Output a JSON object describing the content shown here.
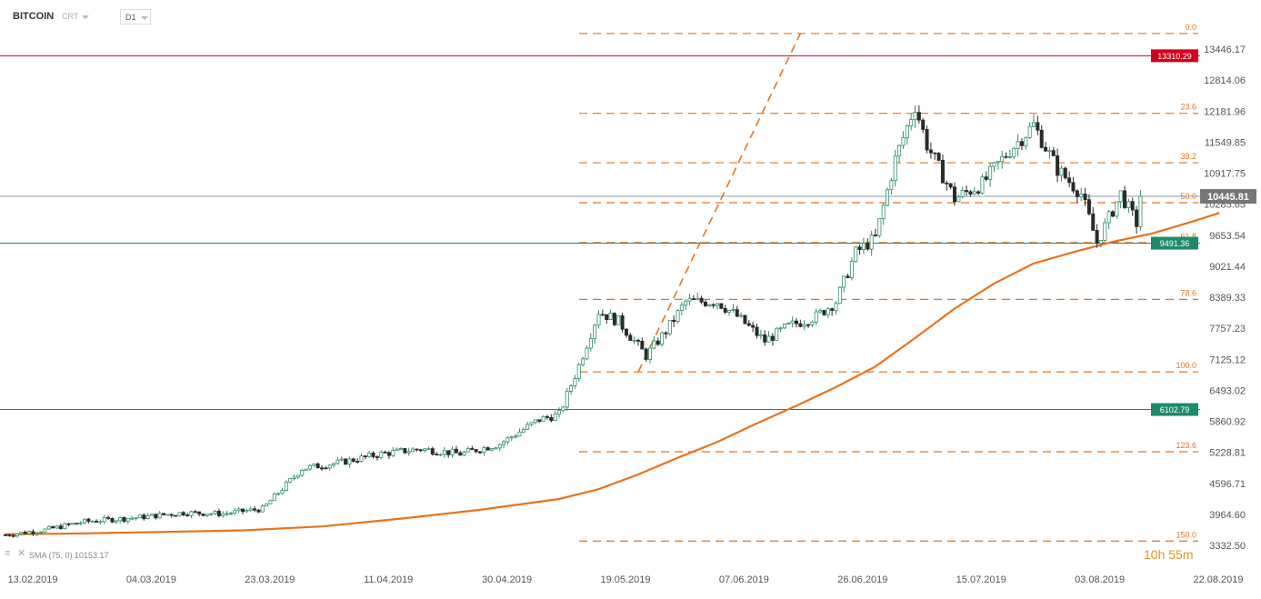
{
  "header": {
    "symbol": "BITCOIN",
    "chart_type_label": "CRT",
    "timeframe": "D1"
  },
  "indicator_label": "SMA (75, 0) 10153.17",
  "countdown": "10h 55m",
  "colors": {
    "bull_candle_fill": "#ffffff",
    "bull_candle_stroke": "#2f8f6b",
    "bear_candle_fill": "#2b2b2b",
    "sma": "#e8731d",
    "fibonacci": "#e8731d",
    "resistance": "#d0021b",
    "support": "#1e8a6a",
    "last_price": "#777777"
  },
  "chart_data": {
    "type": "candlestick",
    "x_labels": [
      "13.02.2019",
      "04.03.2019",
      "23.03.2019",
      "11.04.2019",
      "30.04.2019",
      "19.05.2019",
      "07.06.2019",
      "26.06.2019",
      "15.07.2019",
      "03.08.2019",
      "22.08.2019"
    ],
    "y_labels": [
      "13446.17",
      "12814.06",
      "12181.96",
      "11549.85",
      "10917.75",
      "10285.65",
      "9653.54",
      "9021.44",
      "8389.33",
      "7757.23",
      "7125.12",
      "6493.02",
      "5860.92",
      "5228.81",
      "4596.71",
      "3964.60",
      "3332.50"
    ],
    "y_range": [
      3332.5,
      13446.17
    ],
    "fibonacci": {
      "high": 13764,
      "low": 6870,
      "levels": [
        {
          "label": "0.0",
          "value": 13764
        },
        {
          "label": "23.6",
          "value": 12137
        },
        {
          "label": "38.2",
          "value": 11130
        },
        {
          "label": "50.0",
          "value": 10317
        },
        {
          "label": "61.8",
          "value": 9504
        },
        {
          "label": "78.6",
          "value": 8346
        },
        {
          "label": "100.0",
          "value": 6870
        },
        {
          "label": "123.6",
          "value": 5243
        },
        {
          "label": "150.0",
          "value": 3423
        }
      ]
    },
    "horizontal_lines": [
      {
        "price": 13310.29,
        "label": "13310.29",
        "color": "#d0021b"
      },
      {
        "price": 9491.36,
        "label": "9491.36",
        "color": "#1e8a6a"
      },
      {
        "price": 6102.79,
        "label": "6102.79",
        "color": "#1e8a6a"
      }
    ],
    "last_price": {
      "price": 10445.81,
      "label": "10445.81"
    },
    "sma_75": [
      [
        0,
        3560
      ],
      [
        20,
        3580
      ],
      [
        40,
        3610
      ],
      [
        60,
        3640
      ],
      [
        80,
        3720
      ],
      [
        100,
        3880
      ],
      [
        120,
        4060
      ],
      [
        140,
        4280
      ],
      [
        150,
        4480
      ],
      [
        160,
        4780
      ],
      [
        170,
        5120
      ],
      [
        180,
        5440
      ],
      [
        190,
        5820
      ],
      [
        200,
        6180
      ],
      [
        210,
        6560
      ],
      [
        220,
        6980
      ],
      [
        230,
        7560
      ],
      [
        240,
        8160
      ],
      [
        250,
        8670
      ],
      [
        260,
        9080
      ],
      [
        270,
        9310
      ],
      [
        280,
        9520
      ],
      [
        290,
        9690
      ],
      [
        300,
        9930
      ],
      [
        307,
        10110
      ]
    ],
    "trend_line": [
      [
        160,
        6870
      ],
      [
        201,
        13764
      ]
    ]
  }
}
